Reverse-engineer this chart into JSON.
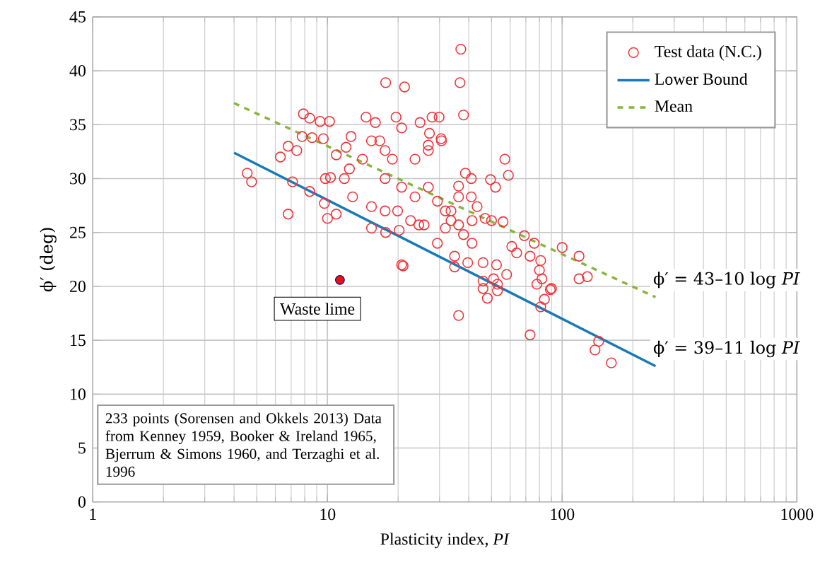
{
  "chart_data": {
    "type": "scatter",
    "xlabel": "Plasticity index, *PI*",
    "ylabel": "ϕ′ (deg)",
    "log": "x",
    "grid": true,
    "legend": "top right",
    "xlim": [
      1,
      1000
    ],
    "ylim": [
      0,
      45
    ],
    "xticks": [
      1,
      10,
      100,
      1000
    ],
    "yticks": [
      0,
      5,
      10,
      15,
      20,
      25,
      30,
      35,
      40,
      45
    ],
    "series": [
      {
        "name": "Test data (N.C.)",
        "marker": "circle",
        "color": "#f0363c",
        "x": [
          37,
          17.7,
          21.3,
          36.7,
          38,
          7.9,
          8.4,
          9.3,
          10.2,
          7.8,
          8.6,
          9.6,
          6.3,
          6.8,
          7.4,
          4.55,
          4.75,
          7.1,
          8.4,
          6.8,
          9.7,
          10.0,
          10.9,
          9.8,
          10.3,
          10.9,
          12.0,
          12.6,
          14.6,
          16.0,
          19.6,
          20.7,
          24.8,
          27.9,
          29.9,
          30.5,
          27.2,
          15.4,
          17.6,
          14.1,
          12.4,
          11.8,
          12.8,
          15.4,
          17.6,
          19.9,
          15.4,
          17.7,
          20.2,
          20.7,
          22.6,
          25.8,
          31.8,
          34.8,
          17.6,
          20.7,
          23.6,
          26.9,
          29.4,
          33.6,
          36.2,
          38,
          41.3,
          43.4,
          23.6,
          26.9,
          18.9,
          16.7,
          57,
          59,
          49.5,
          52,
          41,
          41,
          38.7,
          36.2,
          30.6,
          26.9,
          31.8,
          33.6,
          36.2,
          41.3,
          47,
          50,
          56,
          61,
          69,
          76,
          64,
          73,
          81,
          82,
          100,
          118,
          118,
          128,
          78,
          90,
          29.4,
          34.8,
          39.6,
          46,
          52.5,
          46,
          53,
          24.5,
          36.2,
          73,
          81,
          84,
          89,
          143,
          138,
          162,
          21,
          48,
          46,
          53,
          80,
          58,
          51
        ],
        "values": [
          42.0,
          38.9,
          38.5,
          38.9,
          35.9,
          36.0,
          35.6,
          35.3,
          35.3,
          33.9,
          33.8,
          33.7,
          32.0,
          33.0,
          32.6,
          30.5,
          29.7,
          29.7,
          28.8,
          26.7,
          27.7,
          26.3,
          26.7,
          30.0,
          30.1,
          32.2,
          32.9,
          33.9,
          35.7,
          35.2,
          35.7,
          34.7,
          35.2,
          35.7,
          35.7,
          33.7,
          34.2,
          33.5,
          32.6,
          31.8,
          30.9,
          30.0,
          28.3,
          27.4,
          27.0,
          27.0,
          25.4,
          25.0,
          25.2,
          22.0,
          26.1,
          25.7,
          25.4,
          21.8,
          30.0,
          29.2,
          28.3,
          29.2,
          27.9,
          27.0,
          28.3,
          24.8,
          24.0,
          27.4,
          31.8,
          32.6,
          31.8,
          33.5,
          31.8,
          30.3,
          29.9,
          29.2,
          30.0,
          28.3,
          30.5,
          29.3,
          33.5,
          33.1,
          27.0,
          26.1,
          25.7,
          26.1,
          26.3,
          26.1,
          26.0,
          23.7,
          24.7,
          24.0,
          23.1,
          22.8,
          22.4,
          20.7,
          23.6,
          22.8,
          20.7,
          20.9,
          20.2,
          19.8,
          24.0,
          22.8,
          22.2,
          22.2,
          22.0,
          20.5,
          20.2,
          25.7,
          17.3,
          15.5,
          18.1,
          18.8,
          19.7,
          14.9,
          14.1,
          12.9,
          21.9,
          18.9,
          19.8,
          19.6,
          21.5,
          21.1,
          20.7
        ]
      },
      {
        "name": "Waste lime",
        "marker": "circle",
        "color": "#e8101a",
        "x": [
          11.3
        ],
        "values": [
          20.6
        ]
      },
      {
        "name": "Lower Bound",
        "type": "line",
        "marker": "none",
        "line_style": "solid",
        "color": "#1a7ab5",
        "x": [
          4,
          250
        ],
        "values": [
          32.4,
          12.6
        ]
      },
      {
        "name": "Mean",
        "type": "line",
        "marker": "none",
        "line_style": "dashed",
        "color": "#8ab43c",
        "x": [
          4,
          250
        ],
        "values": [
          37.0,
          19.0
        ]
      }
    ],
    "annotations": [
      {
        "text": "ϕ′ = 43–10 log *PI*",
        "x": 250,
        "y": 19.0
      },
      {
        "text": "ϕ′ = 39–11 log *PI*",
        "x": 250,
        "y": 12.6
      },
      "233 points (Sorensen and Okkels 2013) Data from Kenney 1959, Booker & Ireland 1965, Bjerrum & Simons 1960, and Terzaghi et al. 1996"
    ]
  }
}
